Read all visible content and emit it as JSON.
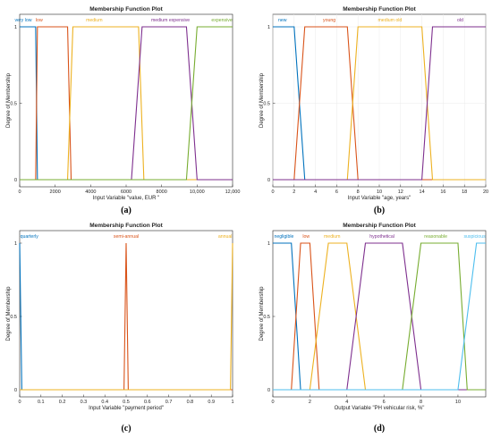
{
  "colors": [
    "#0072BD",
    "#D95319",
    "#EDB120",
    "#7E2F8E",
    "#77AC30",
    "#4DBEEE"
  ],
  "chart_data": [
    {
      "type": "line",
      "title": "Membership Function Plot",
      "xlabel": "Input Variable \"value, EUR \"",
      "ylabel": "Degree of Membership",
      "caption": "(a)",
      "xlim": [
        0,
        12000
      ],
      "ylim": [
        0,
        1
      ],
      "xticks": [
        0,
        2000,
        4000,
        6000,
        8000,
        10000,
        12000
      ],
      "xtick_labels": [
        "0",
        "2000",
        "4000",
        "6000",
        "8000",
        "10,000",
        "12,000"
      ],
      "yticks": [
        0,
        0.5,
        1
      ],
      "ytick_labels": [
        "0",
        "0.5",
        "1"
      ],
      "grid": false,
      "series": [
        {
          "name": "very low",
          "label_x": 200,
          "x": [
            0,
            900,
            1000,
            12000
          ],
          "y": [
            1,
            1,
            0,
            0
          ]
        },
        {
          "name": "low",
          "label_x": 1100,
          "x": [
            0,
            900,
            1000,
            2700,
            2900,
            12000
          ],
          "y": [
            0,
            0,
            1,
            1,
            0,
            0
          ]
        },
        {
          "name": "medium",
          "label_x": 4200,
          "x": [
            0,
            2700,
            3000,
            6700,
            7000,
            12000
          ],
          "y": [
            0,
            0,
            1,
            1,
            0,
            0
          ]
        },
        {
          "name": "medium expensive",
          "label_x": 8500,
          "x": [
            0,
            6300,
            6900,
            9400,
            10000,
            12000
          ],
          "y": [
            0,
            0,
            1,
            1,
            0,
            0
          ]
        },
        {
          "name": "expensive",
          "label_x": 11400,
          "x": [
            0,
            9400,
            10000,
            12000
          ],
          "y": [
            0,
            0,
            1,
            1
          ]
        }
      ]
    },
    {
      "type": "line",
      "title": "Membership Function Plot",
      "xlabel": "Input Variable \"age, years\"",
      "ylabel": "Degree of Membership",
      "caption": "(b)",
      "xlim": [
        0,
        20
      ],
      "ylim": [
        0,
        1
      ],
      "xticks": [
        0,
        2,
        4,
        6,
        8,
        10,
        12,
        14,
        16,
        18,
        20
      ],
      "xtick_labels": [
        "0",
        "2",
        "4",
        "6",
        "8",
        "10",
        "12",
        "14",
        "16",
        "18",
        "20"
      ],
      "yticks": [
        0,
        0.5,
        1
      ],
      "ytick_labels": [
        "0",
        "0.5",
        "1"
      ],
      "grid": true,
      "series": [
        {
          "name": "new",
          "label_x": 0.9,
          "x": [
            0,
            2,
            3,
            20
          ],
          "y": [
            1,
            1,
            0,
            0
          ]
        },
        {
          "name": "young",
          "label_x": 5.3,
          "x": [
            0,
            2,
            3,
            7,
            8,
            20
          ],
          "y": [
            0,
            0,
            1,
            1,
            0,
            0
          ]
        },
        {
          "name": "medium old",
          "label_x": 11,
          "x": [
            0,
            7,
            8,
            14,
            15,
            20
          ],
          "y": [
            0,
            0,
            1,
            1,
            0,
            0
          ]
        },
        {
          "name": "old",
          "label_x": 17.6,
          "x": [
            0,
            14,
            15,
            20
          ],
          "y": [
            0,
            0,
            1,
            1
          ]
        }
      ]
    },
    {
      "type": "line",
      "title": "Membership Function Plot",
      "xlabel": "Input Variable \"payment period\"",
      "ylabel": "Degree of Membership",
      "caption": "(c)",
      "xlim": [
        0,
        1
      ],
      "ylim": [
        0,
        1
      ],
      "xticks": [
        0,
        0.1,
        0.2,
        0.3,
        0.4,
        0.5,
        0.6,
        0.7,
        0.8,
        0.9,
        1
      ],
      "xtick_labels": [
        "0",
        "0.1",
        "0.2",
        "0.3",
        "0.4",
        "0.5",
        "0.6",
        "0.7",
        "0.8",
        "0.9",
        "1"
      ],
      "yticks": [
        0,
        0.5,
        1
      ],
      "ytick_labels": [
        "0",
        "0.5",
        "1"
      ],
      "grid": false,
      "series": [
        {
          "name": "quarterly",
          "label_x": 0.045,
          "x": [
            0,
            0.01,
            1
          ],
          "y": [
            1,
            0,
            0
          ]
        },
        {
          "name": "semi-annual",
          "label_x": 0.5,
          "x": [
            0,
            0.49,
            0.5,
            0.51,
            1
          ],
          "y": [
            0,
            0,
            1,
            0,
            0
          ]
        },
        {
          "name": "annual",
          "label_x": 0.965,
          "x": [
            0,
            0.99,
            1
          ],
          "y": [
            0,
            0,
            1
          ]
        }
      ]
    },
    {
      "type": "line",
      "title": "Membership Function Plot",
      "xlabel": "Output Variable \"PH vehicular risk, %\"",
      "ylabel": "Degree of Membership",
      "caption": "(d)",
      "xlim": [
        0,
        11.5
      ],
      "ylim": [
        0,
        1
      ],
      "xticks": [
        0,
        2,
        4,
        6,
        8,
        10
      ],
      "xtick_labels": [
        "0",
        "2",
        "4",
        "6",
        "8",
        "10"
      ],
      "yticks": [
        0,
        0.5,
        1
      ],
      "ytick_labels": [
        "0",
        "0.5",
        "1"
      ],
      "grid": false,
      "series": [
        {
          "name": "negligible",
          "label_x": 0.6,
          "x": [
            0,
            1,
            1.5,
            11.5
          ],
          "y": [
            1,
            1,
            0,
            0
          ]
        },
        {
          "name": "low",
          "label_x": 1.8,
          "x": [
            0,
            1,
            1.5,
            2,
            2.5,
            11.5
          ],
          "y": [
            0,
            0,
            1,
            1,
            0,
            0
          ]
        },
        {
          "name": "medium",
          "label_x": 3.2,
          "x": [
            0,
            2,
            3,
            4,
            5,
            11.5
          ],
          "y": [
            0,
            0,
            1,
            1,
            0,
            0
          ]
        },
        {
          "name": "hypothetical",
          "label_x": 5.9,
          "x": [
            0,
            4,
            5,
            7,
            8,
            11.5
          ],
          "y": [
            0,
            0,
            1,
            1,
            0,
            0
          ]
        },
        {
          "name": "reasonable",
          "label_x": 8.8,
          "x": [
            0,
            7,
            8,
            10,
            10.5,
            11.5
          ],
          "y": [
            0,
            0,
            1,
            1,
            0,
            0
          ]
        },
        {
          "name": "suspicious",
          "label_x": 10.9,
          "x": [
            0,
            10,
            11,
            11.5
          ],
          "y": [
            0,
            0,
            1,
            1
          ]
        }
      ]
    }
  ]
}
